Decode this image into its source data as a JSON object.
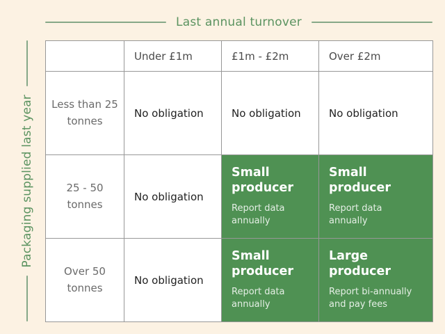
{
  "title": "Last annual turnover",
  "side_label": "Packaging supplied last year",
  "colors": {
    "background": "#fcf2e3",
    "accent_green": "#4f9153",
    "accent_green_dark": "#468449",
    "title_green": "#5b9360",
    "cell_border": "#979797",
    "header_text": "#4a4a4a",
    "row_label_text": "#6a6a6a",
    "plain_text": "#1f1f1f"
  },
  "matrix": {
    "column_headers": [
      "Under £1m",
      "£1m - £2m",
      "Over £2m"
    ],
    "row_headers": [
      "Less than 25 tonnes",
      "25 - 50 tonnes",
      "Over 50 tonnes"
    ],
    "cells": [
      [
        {
          "kind": "no-obligation",
          "text": "No obligation"
        },
        {
          "kind": "no-obligation",
          "text": "No obligation"
        },
        {
          "kind": "no-obligation",
          "text": "No obligation"
        }
      ],
      [
        {
          "kind": "no-obligation",
          "text": "No obligation"
        },
        {
          "kind": "small-producer",
          "title": "Small producer",
          "subtitle": "Report data annually"
        },
        {
          "kind": "small-producer",
          "title": "Small producer",
          "subtitle": "Report data annually"
        }
      ],
      [
        {
          "kind": "no-obligation",
          "text": "No obligation"
        },
        {
          "kind": "small-producer",
          "title": "Small producer",
          "subtitle": "Report data annually"
        },
        {
          "kind": "large-producer",
          "title": "Large producer",
          "subtitle": "Report bi-annually and pay fees"
        }
      ]
    ]
  }
}
